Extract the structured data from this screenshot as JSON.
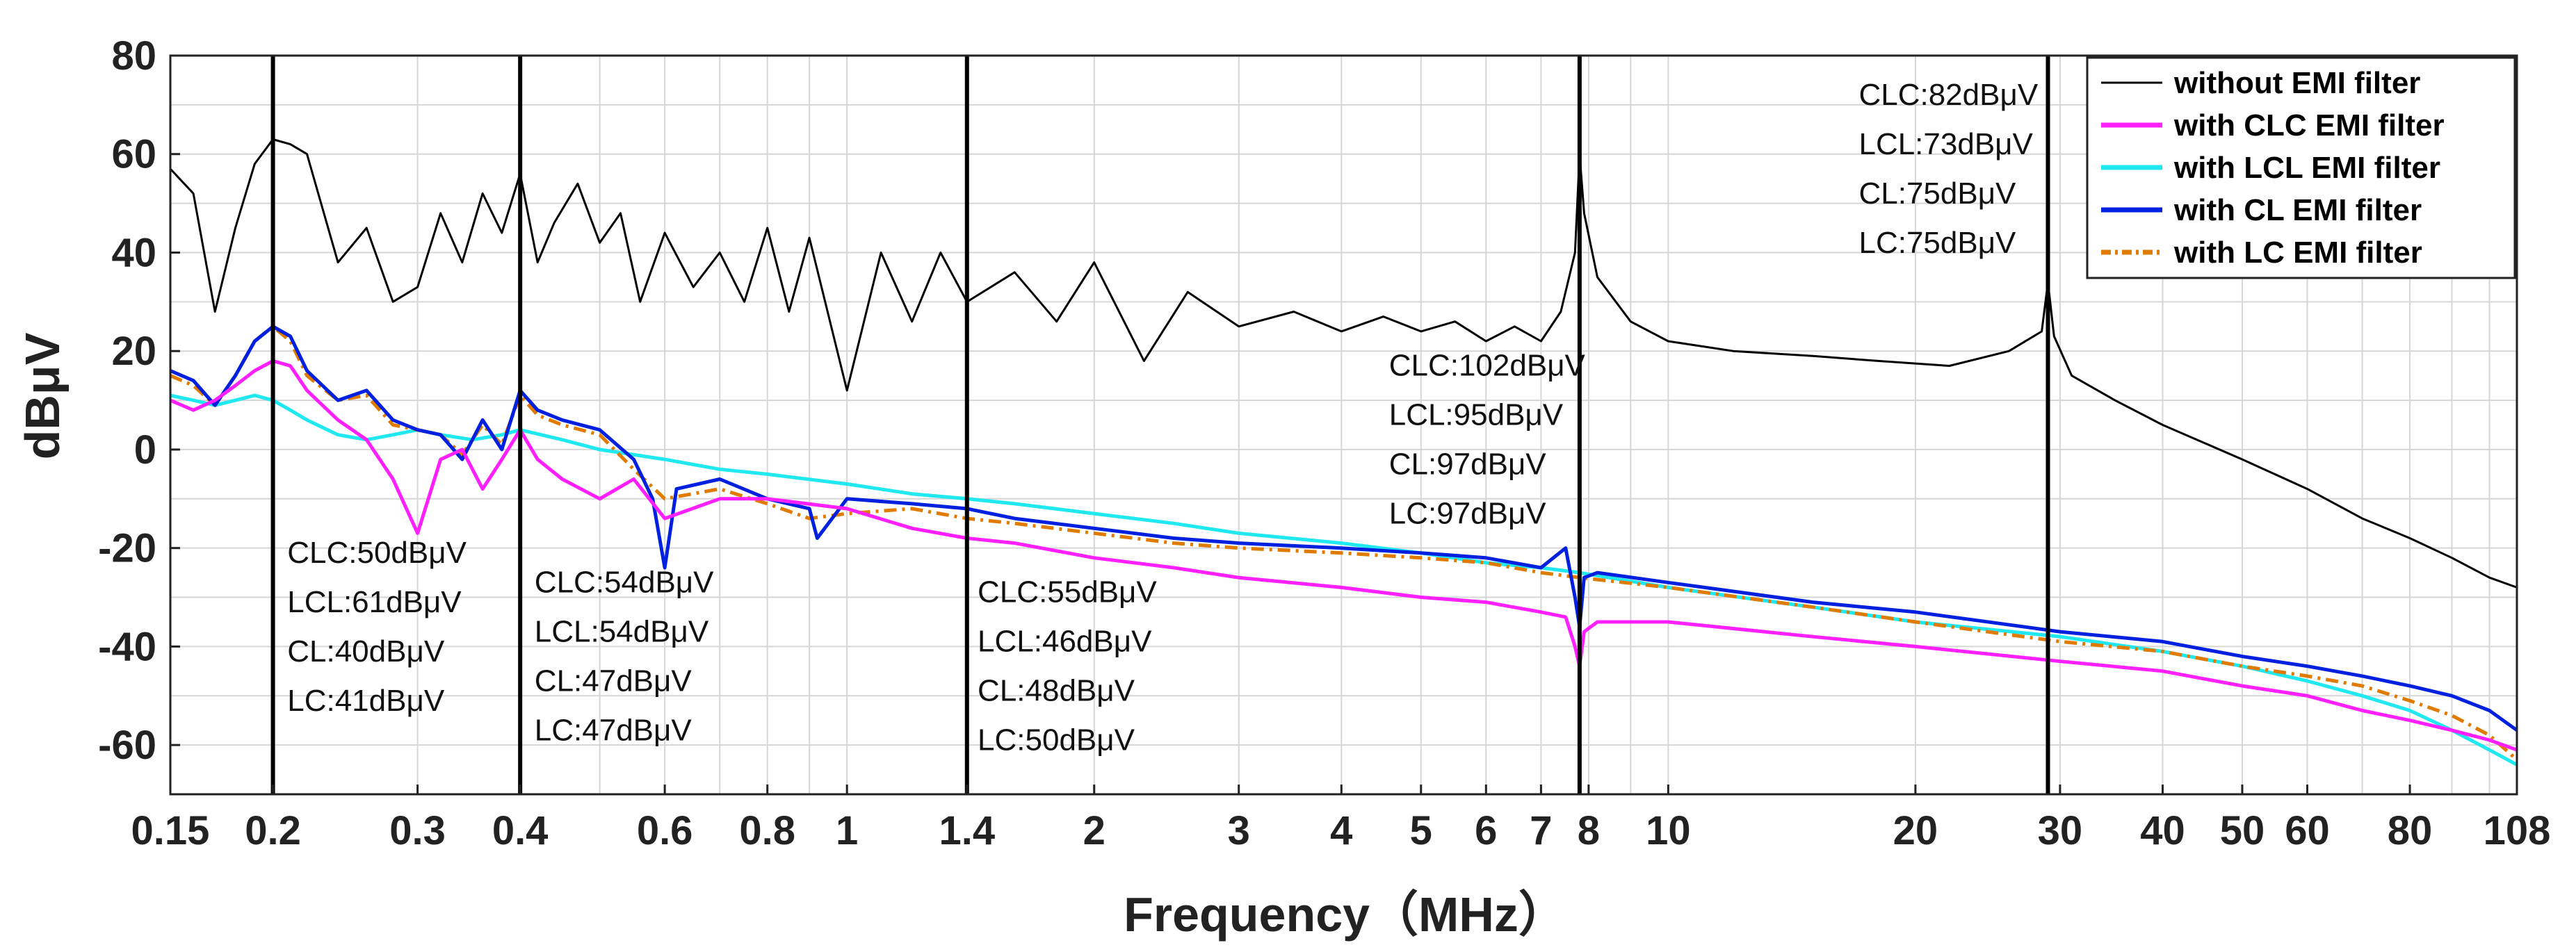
{
  "chart_data": {
    "type": "line",
    "xscale": "log",
    "xlabel": "Frequency（MHz）",
    "ylabel": "dBμV",
    "xlim": [
      0.15,
      108
    ],
    "ylim": [
      -70,
      80
    ],
    "x_ticks": [
      0.15,
      0.2,
      0.3,
      0.4,
      0.6,
      0.8,
      1,
      1.4,
      2,
      3,
      4,
      5,
      6,
      7,
      8,
      10,
      20,
      30,
      40,
      50,
      60,
      80,
      108
    ],
    "x_tick_labels": [
      "0.15",
      "0.2",
      "0.3",
      "0.4",
      "0.6",
      "0.8",
      "1",
      "1.4",
      "2",
      "3",
      "4",
      "5",
      "6",
      "7",
      "8",
      "10",
      "20",
      "30",
      "40",
      "50",
      "60",
      "80",
      "108"
    ],
    "y_ticks": [
      80,
      60,
      40,
      20,
      0,
      -20,
      -40,
      -60
    ],
    "y_tick_labels": [
      "80",
      "60",
      "40",
      "20",
      "0",
      "-20",
      "-40",
      "-60"
    ],
    "grid": true,
    "legend_position": "top-right",
    "vertical_markers": [
      0.2,
      0.4,
      1.4,
      7.8,
      29
    ],
    "series": [
      {
        "name": "without EMI filter",
        "color": "#000000",
        "dash": "solid",
        "x": [
          0.15,
          0.16,
          0.17,
          0.18,
          0.19,
          0.2,
          0.21,
          0.22,
          0.24,
          0.26,
          0.28,
          0.3,
          0.32,
          0.34,
          0.36,
          0.38,
          0.4,
          0.42,
          0.44,
          0.47,
          0.5,
          0.53,
          0.56,
          0.6,
          0.65,
          0.7,
          0.75,
          0.8,
          0.85,
          0.9,
          1.0,
          1.1,
          1.2,
          1.3,
          1.4,
          1.6,
          1.8,
          2.0,
          2.3,
          2.6,
          3.0,
          3.5,
          4.0,
          4.5,
          5.0,
          5.5,
          6.0,
          6.5,
          7.0,
          7.4,
          7.7,
          7.8,
          7.9,
          8.2,
          9.0,
          10,
          12,
          15,
          18,
          22,
          26,
          28.5,
          29,
          29.5,
          31,
          35,
          40,
          50,
          60,
          70,
          80,
          90,
          100,
          108
        ],
        "y": [
          57,
          52,
          28,
          45,
          58,
          63,
          62,
          60,
          38,
          45,
          30,
          33,
          48,
          38,
          52,
          44,
          56,
          38,
          46,
          54,
          42,
          48,
          30,
          44,
          33,
          40,
          30,
          45,
          28,
          43,
          12,
          40,
          26,
          40,
          30,
          36,
          26,
          38,
          18,
          32,
          25,
          28,
          24,
          27,
          24,
          26,
          22,
          25,
          22,
          28,
          40,
          60,
          48,
          35,
          26,
          22,
          20,
          19,
          18,
          17,
          20,
          24,
          34,
          23,
          15,
          10,
          5,
          -2,
          -8,
          -14,
          -18,
          -22,
          -26,
          -28
        ]
      },
      {
        "name": "with CLC EMI filter",
        "color": "#ff1fff",
        "dash": "solid",
        "x": [
          0.15,
          0.16,
          0.17,
          0.18,
          0.19,
          0.2,
          0.21,
          0.22,
          0.24,
          0.26,
          0.28,
          0.3,
          0.32,
          0.34,
          0.36,
          0.38,
          0.4,
          0.42,
          0.45,
          0.5,
          0.55,
          0.6,
          0.7,
          0.8,
          1.0,
          1.2,
          1.4,
          1.6,
          2.0,
          2.5,
          3.0,
          4.0,
          5.0,
          6.0,
          7.0,
          7.5,
          7.7,
          7.8,
          7.9,
          8.2,
          10,
          15,
          20,
          30,
          40,
          50,
          60,
          70,
          80,
          90,
          100,
          108
        ],
        "y": [
          10,
          8,
          10,
          13,
          16,
          18,
          17,
          12,
          6,
          2,
          -6,
          -17,
          -2,
          0,
          -8,
          -2,
          4,
          -2,
          -6,
          -10,
          -6,
          -14,
          -10,
          -10,
          -12,
          -16,
          -18,
          -19,
          -22,
          -24,
          -26,
          -28,
          -30,
          -31,
          -33,
          -34,
          -40,
          -44,
          -37,
          -35,
          -35,
          -38,
          -40,
          -43,
          -45,
          -48,
          -50,
          -53,
          -55,
          -57,
          -59,
          -61
        ]
      },
      {
        "name": "with LCL EMI filter",
        "color": "#1fe8f0",
        "dash": "solid",
        "x": [
          0.15,
          0.16,
          0.17,
          0.18,
          0.19,
          0.2,
          0.21,
          0.22,
          0.24,
          0.26,
          0.28,
          0.3,
          0.32,
          0.35,
          0.38,
          0.4,
          0.45,
          0.5,
          0.6,
          0.7,
          0.8,
          1.0,
          1.2,
          1.4,
          1.6,
          2.0,
          2.5,
          3.0,
          4.0,
          5.0,
          6.0,
          7.0,
          7.8,
          10,
          15,
          20,
          30,
          40,
          50,
          60,
          70,
          80,
          90,
          100,
          108
        ],
        "y": [
          11,
          10,
          9,
          10,
          11,
          10,
          8,
          6,
          3,
          2,
          3,
          4,
          3,
          2,
          3,
          4,
          2,
          0,
          -2,
          -4,
          -5,
          -7,
          -9,
          -10,
          -11,
          -13,
          -15,
          -17,
          -19,
          -21,
          -23,
          -24,
          -25,
          -28,
          -32,
          -35,
          -38,
          -41,
          -44,
          -47,
          -50,
          -53,
          -57,
          -61,
          -64
        ]
      },
      {
        "name": "with CL EMI filter",
        "color": "#0020e0",
        "dash": "solid",
        "x": [
          0.15,
          0.16,
          0.17,
          0.18,
          0.19,
          0.2,
          0.21,
          0.22,
          0.24,
          0.26,
          0.28,
          0.3,
          0.32,
          0.34,
          0.36,
          0.38,
          0.4,
          0.42,
          0.45,
          0.5,
          0.55,
          0.58,
          0.6,
          0.62,
          0.7,
          0.8,
          0.9,
          0.92,
          1.0,
          1.2,
          1.4,
          1.6,
          2.0,
          2.5,
          3.0,
          4.0,
          5.0,
          6.0,
          7.0,
          7.5,
          7.7,
          7.8,
          7.9,
          8.2,
          10,
          15,
          20,
          30,
          40,
          50,
          60,
          70,
          80,
          90,
          100,
          108
        ],
        "y": [
          16,
          14,
          9,
          15,
          22,
          25,
          23,
          16,
          10,
          12,
          6,
          4,
          3,
          -2,
          6,
          0,
          12,
          8,
          6,
          4,
          -2,
          -10,
          -24,
          -8,
          -6,
          -10,
          -12,
          -18,
          -10,
          -11,
          -12,
          -14,
          -16,
          -18,
          -19,
          -20,
          -21,
          -22,
          -24,
          -20,
          -30,
          -36,
          -26,
          -25,
          -27,
          -31,
          -33,
          -37,
          -39,
          -42,
          -44,
          -46,
          -48,
          -50,
          -53,
          -57
        ]
      },
      {
        "name": "with LC EMI filter",
        "color": "#e07b00",
        "dash": "dashdot",
        "x": [
          0.15,
          0.16,
          0.17,
          0.18,
          0.19,
          0.2,
          0.21,
          0.22,
          0.24,
          0.26,
          0.28,
          0.3,
          0.32,
          0.34,
          0.36,
          0.38,
          0.4,
          0.42,
          0.45,
          0.5,
          0.55,
          0.6,
          0.7,
          0.8,
          0.9,
          1.0,
          1.2,
          1.4,
          1.6,
          2.0,
          2.5,
          3.0,
          4.0,
          5.0,
          6.0,
          7.0,
          7.8,
          10,
          15,
          20,
          30,
          40,
          50,
          60,
          70,
          80,
          90,
          100,
          108
        ],
        "y": [
          15,
          13,
          9,
          15,
          22,
          25,
          22,
          15,
          10,
          11,
          5,
          4,
          3,
          -1,
          5,
          1,
          11,
          7,
          5,
          3,
          -4,
          -10,
          -8,
          -11,
          -14,
          -13,
          -12,
          -14,
          -15,
          -17,
          -19,
          -20,
          -21,
          -22,
          -23,
          -25,
          -26,
          -28,
          -32,
          -35,
          -39,
          -41,
          -44,
          -46,
          -48,
          -51,
          -54,
          -58,
          -63
        ]
      }
    ],
    "annotations": [
      {
        "x": 0.205,
        "y": -23,
        "lines": [
          "CLC:50dBμV",
          "LCL:61dBμV",
          "CL:40dBμV",
          "LC:41dBμV"
        ]
      },
      {
        "x": 0.41,
        "y": -29,
        "lines": [
          "CLC:54dBμV",
          "LCL:54dBμV",
          "CL:47dBμV",
          "LC:47dBμV"
        ]
      },
      {
        "x": 1.42,
        "y": -31,
        "lines": [
          "CLC:55dBμV",
          "LCL:46dBμV",
          "CL:48dBμV",
          "LC:50dBμV"
        ]
      },
      {
        "x": 4.5,
        "y": 15,
        "lines": [
          "CLC:102dBμV",
          "LCL:95dBμV",
          "CL:97dBμV",
          "LC:97dBμV"
        ]
      },
      {
        "x": 16.8,
        "y": 70,
        "lines": [
          "CLC:82dBμV",
          "LCL:73dBμV",
          "CL:75dBμV",
          "LC:75dBμV"
        ]
      }
    ]
  }
}
